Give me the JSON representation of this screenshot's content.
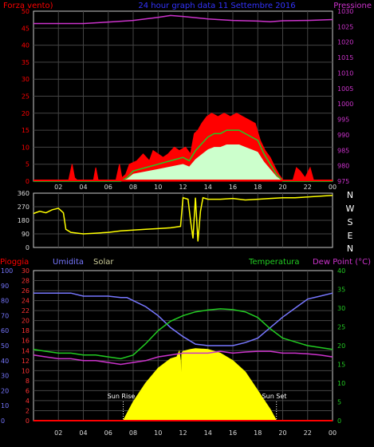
{
  "header": {
    "left": "Forza vento)",
    "center": "24 hour graph data 11 Settembre 2016",
    "right": "Pressione"
  },
  "colors": {
    "wind_gust": "#ff0000",
    "wind_avg": "#22cc22",
    "wind_fill": "#ccffcc",
    "pressure": "#cc33cc",
    "direction": "#ffff00",
    "humidity": "#7777ff",
    "temperature": "#22cc22",
    "dewpoint": "#cc33cc",
    "solar": "#ffff00",
    "rain": "#ff0000",
    "grid": "#444444",
    "frame": "#cccccc"
  },
  "bottom_header": {
    "rain_label": "Pioggia",
    "humidity_label": "Umidita",
    "solar_label": "Solar",
    "temperature_label": "Temperatura",
    "dewpoint_label": "Dew Point (°C)"
  },
  "compass_letters": [
    "N",
    "W",
    "S",
    "E",
    "N"
  ],
  "annotations": {
    "sunrise": "Sun Rise",
    "sunset": "Sun Set"
  },
  "chart_data": [
    {
      "type": "line",
      "name": "wind",
      "x_ticks": [
        "02",
        "04",
        "06",
        "08",
        "10",
        "12",
        "14",
        "16",
        "18",
        "20",
        "22",
        "00"
      ],
      "x_range_hours": [
        0,
        24
      ],
      "y_left_ticks": [
        "0",
        "5",
        "10",
        "15",
        "20",
        "25",
        "30",
        "35",
        "40",
        "45",
        "50"
      ],
      "y_left_range": [
        0,
        50
      ],
      "y_right_ticks": [
        "975",
        "980",
        "985",
        "990",
        "995",
        "1000",
        "1005",
        "1010",
        "1015",
        "1020",
        "1025",
        "1030"
      ],
      "y_right_range": [
        975,
        1030
      ],
      "gust_envelope": [
        [
          0,
          0
        ],
        [
          2.8,
          0
        ],
        [
          3.1,
          5
        ],
        [
          3.3,
          1
        ],
        [
          3.6,
          0
        ],
        [
          4.8,
          0
        ],
        [
          5.0,
          4
        ],
        [
          5.2,
          0
        ],
        [
          6.6,
          0
        ],
        [
          6.9,
          5
        ],
        [
          7.1,
          1
        ],
        [
          7.4,
          2
        ],
        [
          7.7,
          5
        ],
        [
          8.3,
          6
        ],
        [
          8.8,
          8
        ],
        [
          9.3,
          6
        ],
        [
          9.6,
          9
        ],
        [
          10.0,
          8
        ],
        [
          10.4,
          7
        ],
        [
          10.8,
          8
        ],
        [
          11.3,
          10
        ],
        [
          11.7,
          9
        ],
        [
          12.2,
          10
        ],
        [
          12.6,
          8
        ],
        [
          12.9,
          14
        ],
        [
          13.2,
          15
        ],
        [
          13.5,
          17
        ],
        [
          13.9,
          19
        ],
        [
          14.3,
          20
        ],
        [
          14.8,
          19
        ],
        [
          15.3,
          20
        ],
        [
          15.8,
          19
        ],
        [
          16.3,
          20
        ],
        [
          16.8,
          19
        ],
        [
          17.3,
          18
        ],
        [
          17.8,
          17
        ],
        [
          18.2,
          12
        ],
        [
          18.6,
          9
        ],
        [
          19.0,
          7
        ],
        [
          19.4,
          4
        ],
        [
          19.7,
          2
        ],
        [
          20.1,
          0
        ],
        [
          20.8,
          0
        ],
        [
          21.1,
          4
        ],
        [
          21.4,
          3
        ],
        [
          21.8,
          1
        ],
        [
          22.2,
          4
        ],
        [
          22.5,
          0
        ],
        [
          24,
          0
        ]
      ],
      "avg_wind": [
        [
          0,
          0
        ],
        [
          7.0,
          0
        ],
        [
          7.5,
          1
        ],
        [
          8.0,
          3
        ],
        [
          9.0,
          4
        ],
        [
          10.0,
          5
        ],
        [
          11.0,
          6
        ],
        [
          12.0,
          7
        ],
        [
          12.5,
          6
        ],
        [
          13.0,
          9
        ],
        [
          13.5,
          11
        ],
        [
          14.0,
          13
        ],
        [
          14.5,
          14
        ],
        [
          15.0,
          14
        ],
        [
          15.5,
          15
        ],
        [
          16.0,
          15
        ],
        [
          16.5,
          15
        ],
        [
          17.0,
          14
        ],
        [
          17.5,
          13
        ],
        [
          18.0,
          12
        ],
        [
          18.5,
          8
        ],
        [
          19.0,
          5
        ],
        [
          19.5,
          2
        ],
        [
          20.0,
          0
        ],
        [
          24,
          0
        ]
      ],
      "pressure_hpa": [
        [
          0,
          1026.0
        ],
        [
          2,
          1026.0
        ],
        [
          4,
          1026.0
        ],
        [
          6,
          1026.5
        ],
        [
          8,
          1027.0
        ],
        [
          10,
          1028.0
        ],
        [
          11,
          1028.6
        ],
        [
          12,
          1028.3
        ],
        [
          14,
          1027.5
        ],
        [
          16,
          1027.0
        ],
        [
          18,
          1026.8
        ],
        [
          19,
          1026.6
        ],
        [
          20,
          1026.9
        ],
        [
          22,
          1027.0
        ],
        [
          24,
          1027.3
        ]
      ]
    },
    {
      "type": "line",
      "name": "wind direction",
      "y_ticks": [
        "0",
        "90",
        "180",
        "270",
        "360"
      ],
      "y_range_degrees": [
        0,
        360
      ],
      "direction_deg": [
        [
          0,
          225
        ],
        [
          0.5,
          240
        ],
        [
          1,
          230
        ],
        [
          1.5,
          250
        ],
        [
          2,
          260
        ],
        [
          2.4,
          230
        ],
        [
          2.6,
          120
        ],
        [
          3,
          100
        ],
        [
          4,
          90
        ],
        [
          5,
          95
        ],
        [
          6,
          100
        ],
        [
          7,
          110
        ],
        [
          8,
          115
        ],
        [
          9,
          120
        ],
        [
          10,
          125
        ],
        [
          11,
          130
        ],
        [
          11.8,
          140
        ],
        [
          12.0,
          330
        ],
        [
          12.4,
          320
        ],
        [
          12.6,
          180
        ],
        [
          12.8,
          60
        ],
        [
          13.0,
          330
        ],
        [
          13.2,
          40
        ],
        [
          13.4,
          240
        ],
        [
          13.6,
          330
        ],
        [
          14,
          320
        ],
        [
          15,
          320
        ],
        [
          16,
          325
        ],
        [
          17,
          315
        ],
        [
          18,
          320
        ],
        [
          19,
          325
        ],
        [
          20,
          330
        ],
        [
          21,
          330
        ],
        [
          22,
          335
        ],
        [
          23,
          340
        ],
        [
          24,
          345
        ]
      ]
    },
    {
      "type": "line",
      "name": "humidity temperature dewpoint solar rain",
      "y_rain_ticks": [
        "0",
        "2",
        "4",
        "6",
        "8",
        "10",
        "12",
        "14",
        "16",
        "18",
        "20",
        "22",
        "24",
        "26",
        "28",
        "30"
      ],
      "y_rain_range": [
        0,
        30
      ],
      "y_humidity_ticks": [
        "0",
        "10",
        "20",
        "30",
        "40",
        "50",
        "60",
        "70",
        "80",
        "90",
        "100"
      ],
      "y_humidity_range": [
        0,
        100
      ],
      "y_temp_ticks": [
        "0",
        "5",
        "10",
        "15",
        "20",
        "25",
        "30",
        "35",
        "40"
      ],
      "y_temp_range": [
        0,
        40
      ],
      "humidity_pct": [
        [
          0,
          85
        ],
        [
          1,
          85
        ],
        [
          2,
          85
        ],
        [
          3,
          85
        ],
        [
          4,
          83
        ],
        [
          5,
          83
        ],
        [
          6,
          83
        ],
        [
          7,
          82
        ],
        [
          7.5,
          82
        ],
        [
          8,
          80
        ],
        [
          9,
          76
        ],
        [
          10,
          70
        ],
        [
          11,
          62
        ],
        [
          12,
          56
        ],
        [
          13,
          51
        ],
        [
          14,
          50
        ],
        [
          15,
          50
        ],
        [
          16,
          50
        ],
        [
          17,
          52
        ],
        [
          18,
          55
        ],
        [
          19,
          62
        ],
        [
          20,
          69
        ],
        [
          21,
          75
        ],
        [
          22,
          81
        ],
        [
          23,
          83
        ],
        [
          24,
          85
        ]
      ],
      "temperature_c": [
        [
          0,
          19.0
        ],
        [
          1,
          18.5
        ],
        [
          2,
          18.0
        ],
        [
          3,
          18.0
        ],
        [
          4,
          17.5
        ],
        [
          5,
          17.5
        ],
        [
          6,
          17.0
        ],
        [
          7,
          16.5
        ],
        [
          8,
          17.5
        ],
        [
          9,
          20.5
        ],
        [
          10,
          24.0
        ],
        [
          11,
          26.5
        ],
        [
          12,
          28.0
        ],
        [
          13,
          29.0
        ],
        [
          14,
          29.5
        ],
        [
          15,
          29.8
        ],
        [
          16,
          29.6
        ],
        [
          17,
          29.0
        ],
        [
          18,
          27.5
        ],
        [
          19,
          24.5
        ],
        [
          20,
          22.0
        ],
        [
          21,
          21.0
        ],
        [
          22,
          20.0
        ],
        [
          23,
          19.5
        ],
        [
          24,
          19.0
        ]
      ],
      "dewpoint_c": [
        [
          0,
          17.5
        ],
        [
          1,
          17.0
        ],
        [
          2,
          16.5
        ],
        [
          3,
          16.5
        ],
        [
          4,
          16.0
        ],
        [
          5,
          16.0
        ],
        [
          6,
          15.5
        ],
        [
          7,
          15.0
        ],
        [
          8,
          15.5
        ],
        [
          9,
          16.0
        ],
        [
          10,
          17.0
        ],
        [
          11,
          17.5
        ],
        [
          12,
          18.0
        ],
        [
          13,
          18.0
        ],
        [
          14,
          18.0
        ],
        [
          15,
          18.5
        ],
        [
          16,
          18.0
        ],
        [
          17,
          18.3
        ],
        [
          18,
          18.5
        ],
        [
          19,
          18.5
        ],
        [
          20,
          18.0
        ],
        [
          21,
          18.0
        ],
        [
          22,
          17.8
        ],
        [
          23,
          17.5
        ],
        [
          24,
          17.0
        ]
      ],
      "solar_temp_scale": [
        [
          7.2,
          0
        ],
        [
          8,
          5
        ],
        [
          9,
          10
        ],
        [
          10,
          14
        ],
        [
          11,
          16.5
        ],
        [
          11.5,
          17.0
        ],
        [
          11.7,
          18.5
        ],
        [
          11.8,
          16
        ],
        [
          11.85,
          5
        ],
        [
          11.9,
          18
        ],
        [
          12,
          18.5
        ],
        [
          12.6,
          19.0
        ],
        [
          13,
          19.2
        ],
        [
          14,
          19.0
        ],
        [
          15,
          18.0
        ],
        [
          16,
          16.0
        ],
        [
          17,
          13.0
        ],
        [
          18,
          8.0
        ],
        [
          19,
          3.0
        ],
        [
          19.5,
          0
        ]
      ],
      "rain_mm": [
        [
          0,
          0
        ],
        [
          24,
          0
        ]
      ],
      "sunrise_hour": 7.2,
      "sunset_hour": 19.5
    }
  ]
}
